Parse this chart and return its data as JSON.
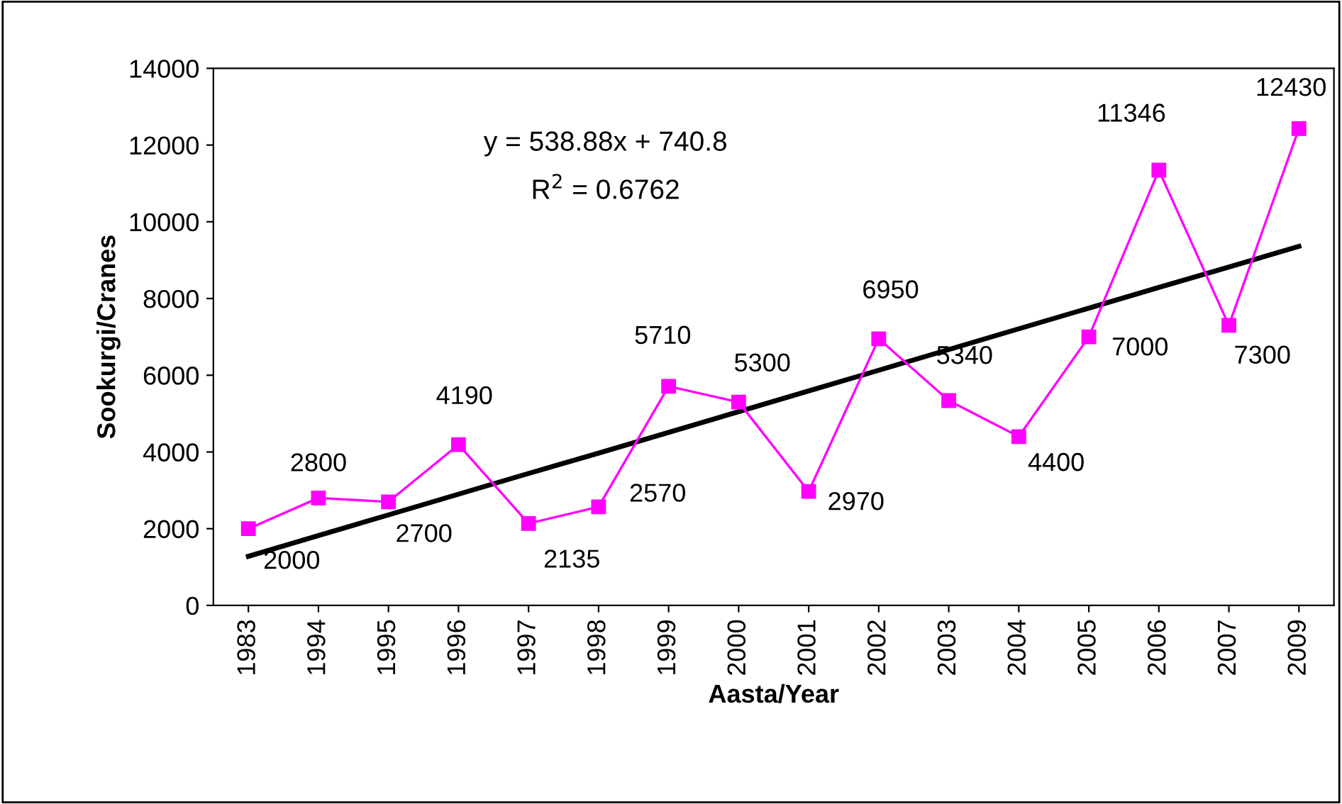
{
  "chart_data": {
    "type": "line",
    "xlabel": "Aasta/Year",
    "ylabel": "Sookurgi/Cranes",
    "categories": [
      "1983",
      "1994",
      "1995",
      "1996",
      "1997",
      "1998",
      "1999",
      "2000",
      "2001",
      "2002",
      "2003",
      "2004",
      "2005",
      "2006",
      "2007",
      "2009"
    ],
    "series": [
      {
        "color": "#ff00ff",
        "marker": "square",
        "values": [
          2000,
          2800,
          2700,
          4190,
          2135,
          2570,
          5710,
          5300,
          2970,
          6950,
          5340,
          4400,
          7000,
          11346,
          7300,
          12430
        ],
        "value_labels": [
          "2000",
          "2800",
          "2700",
          "4190",
          "2135",
          "2570",
          "5710",
          "5300",
          "2970",
          "6950",
          "5340",
          "4400",
          "7000",
          "11346",
          "7300",
          "12430"
        ]
      },
      {
        "color": "#000000",
        "marker": "none",
        "values": [
          1280,
          1820,
          2360,
          2900,
          3440,
          3970,
          4510,
          5050,
          5590,
          6130,
          6670,
          7210,
          7750,
          8290,
          8820,
          9360
        ]
      }
    ],
    "ylim": [
      0,
      14000
    ],
    "yticks": [
      0,
      2000,
      4000,
      6000,
      8000,
      10000,
      12000,
      14000
    ],
    "annotations": [
      "y = 538.88x + 740.8",
      "R$^{2}$ = 0.6762"
    ],
    "grid": false,
    "legend": false
  }
}
